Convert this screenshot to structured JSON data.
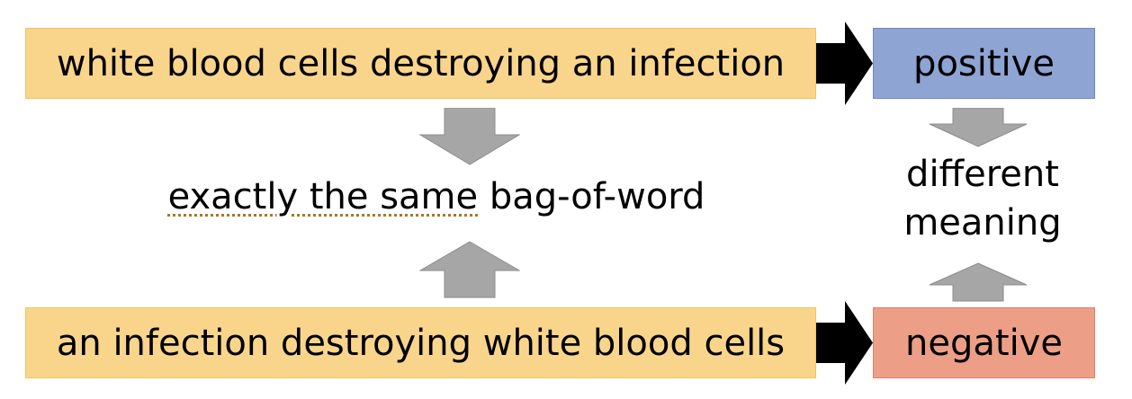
{
  "sentences": {
    "top": "white blood cells destroying an infection",
    "bottom": "an infection destroying white blood cells"
  },
  "labels": {
    "positive": "positive",
    "negative": "negative"
  },
  "center": {
    "underlined": "exactly the same",
    "rest": " bag-of-word"
  },
  "meaning": {
    "line1": "different",
    "line2": "meaning"
  },
  "colors": {
    "sentence_fill": "#f9d58c",
    "positive_fill": "#8ea4d3",
    "negative_fill": "#ec9f86",
    "arrow_gray": "#a6a6a6",
    "arrow_black": "#000000"
  }
}
